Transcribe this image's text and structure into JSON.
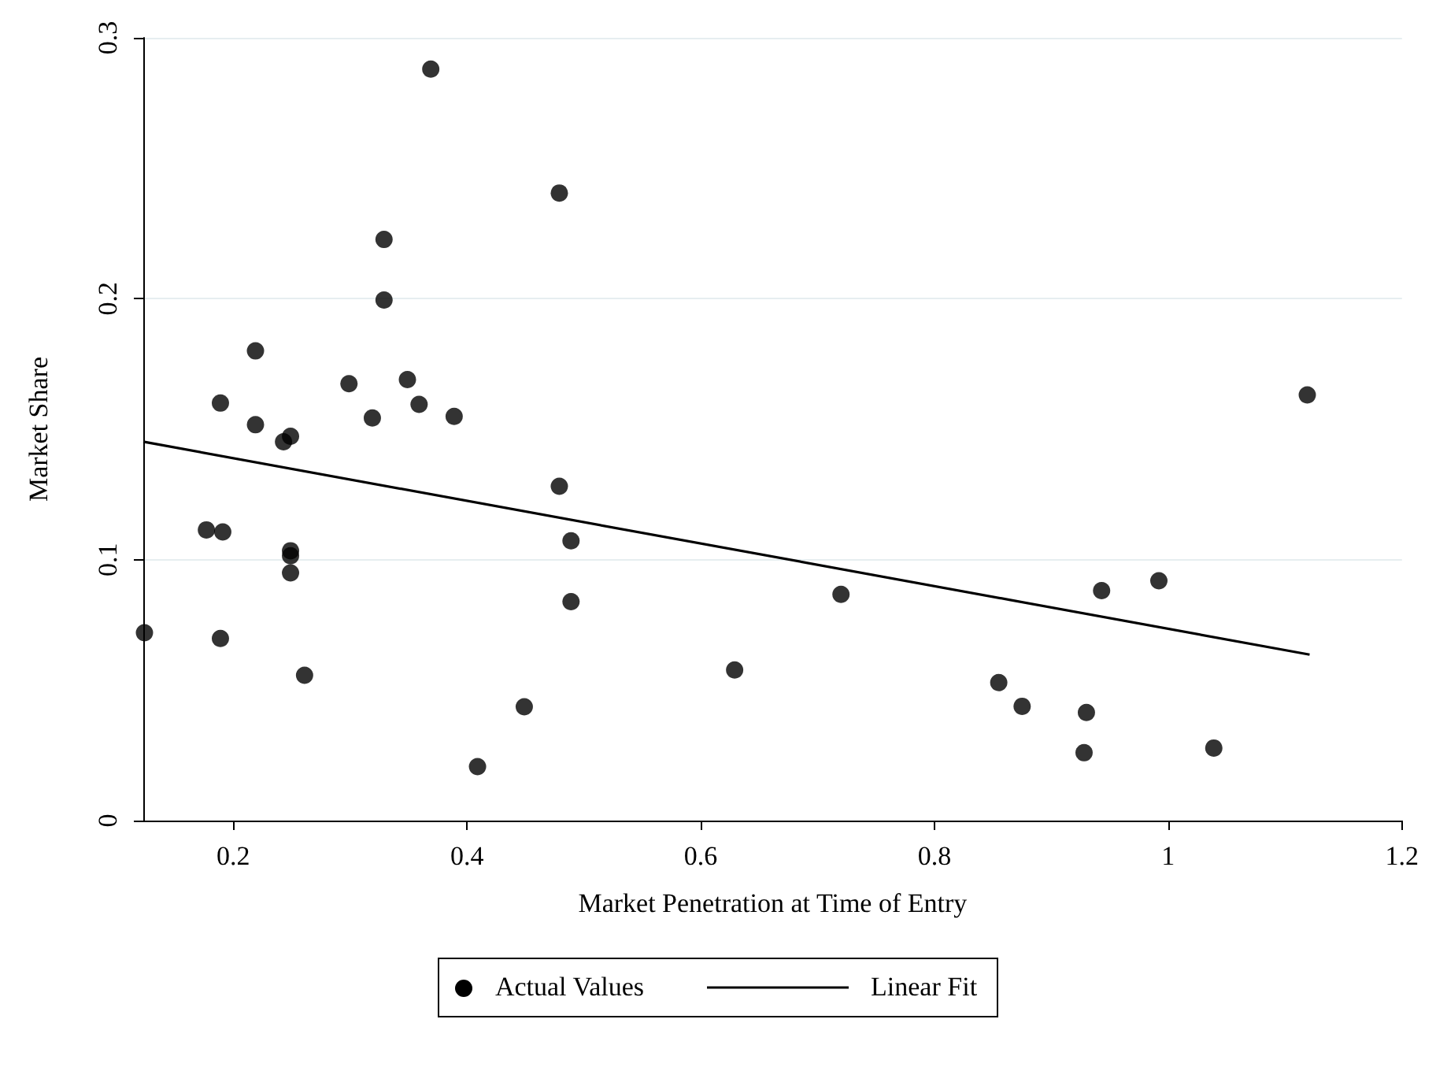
{
  "chart_data": {
    "type": "scatter",
    "xlabel": "Market Penetration at Time of Entry",
    "ylabel": "Market Share",
    "xlim": [
      0.123,
      1.2
    ],
    "xticks": [
      0.2,
      0.4,
      0.6,
      0.8,
      1,
      1.2
    ],
    "ylim": [
      0,
      0.3
    ],
    "yticks": [
      0,
      0.1,
      0.2,
      0.3
    ],
    "grid": "y",
    "legend": "bottom",
    "series": [
      {
        "name": "Actual Values",
        "marker": "circle",
        "color": "#000000",
        "x": [
          0.369,
          0.479,
          0.329,
          0.329,
          0.219,
          0.189,
          0.219,
          0.243,
          0.249,
          0.299,
          0.319,
          0.349,
          0.359,
          0.389,
          0.479,
          0.177,
          0.191,
          0.249,
          0.249,
          0.249,
          0.489,
          0.489,
          0.124,
          0.189,
          0.261,
          0.449,
          0.409,
          0.629,
          1.119,
          0.72,
          0.943,
          0.992,
          0.855,
          0.875,
          0.93,
          0.928,
          1.039
        ],
        "values": [
          0.288,
          0.2405,
          0.2227,
          0.1995,
          0.18,
          0.16,
          0.1517,
          0.1452,
          0.1473,
          0.1674,
          0.1543,
          0.169,
          0.1595,
          0.1549,
          0.1281,
          0.1114,
          0.1106,
          0.1034,
          0.1015,
          0.0949,
          0.1072,
          0.0839,
          0.072,
          0.0698,
          0.0557,
          0.0436,
          0.0207,
          0.0577,
          0.1631,
          0.0867,
          0.0881,
          0.0919,
          0.0529,
          0.0438,
          0.0414,
          0.026,
          0.0278
        ]
      },
      {
        "name": "Linear Fit",
        "type": "line",
        "color": "#000000",
        "line_style": "solid",
        "x": [
          0.123,
          1.121
        ],
        "values": [
          0.1452,
          0.0636
        ]
      }
    ]
  }
}
